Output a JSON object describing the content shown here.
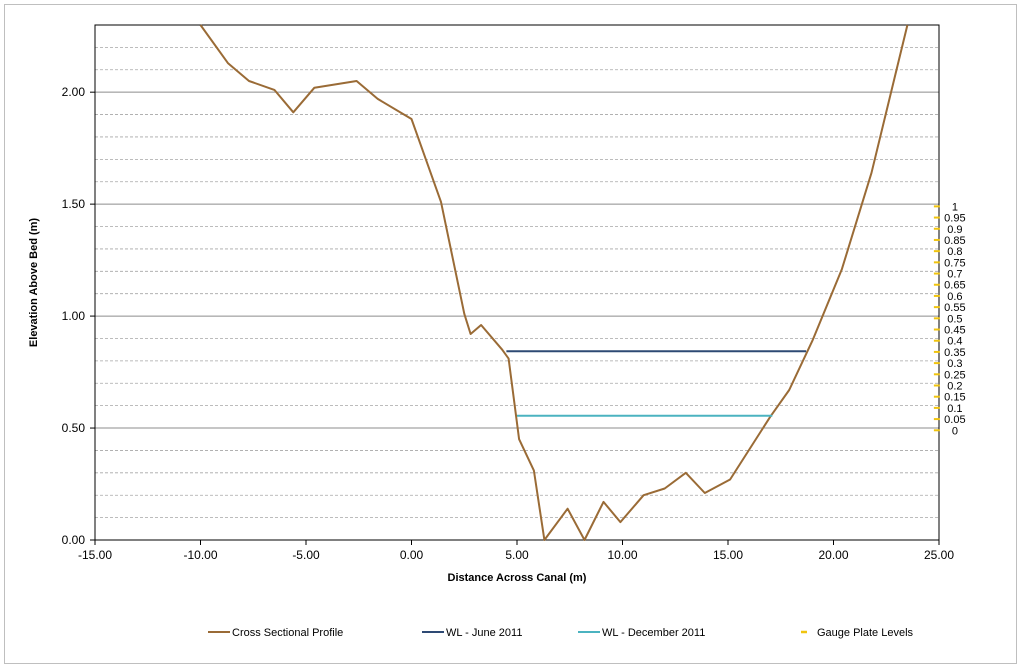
{
  "chart_data": {
    "type": "line",
    "title": "",
    "xlabel": "Distance Across Canal (m)",
    "ylabel": "Elevation Above Bed (m)",
    "xlim": [
      -15,
      25
    ],
    "ylim": [
      0,
      2.3
    ],
    "x_ticks": [
      -15,
      -10,
      -5,
      0,
      5,
      10,
      15,
      20,
      25
    ],
    "y_major_ticks": [
      0,
      0.5,
      1.0,
      1.5,
      2.0
    ],
    "y_minor_step": 0.1,
    "x_tick_labels": [
      "-15.00",
      "-10.00",
      "-5.00",
      "0.00",
      "5.00",
      "10.00",
      "15.00",
      "20.00",
      "25.00"
    ],
    "y_tick_labels": [
      "0.00",
      "0.50",
      "1.00",
      "1.50",
      "2.00"
    ],
    "grid": true,
    "legend_position": "bottom",
    "series": [
      {
        "name": "Cross Sectional Profile",
        "color": "#9a6b36",
        "points": [
          [
            -10.0,
            2.3
          ],
          [
            -8.7,
            2.13
          ],
          [
            -7.7,
            2.05
          ],
          [
            -6.5,
            2.01
          ],
          [
            -5.6,
            1.91
          ],
          [
            -4.6,
            2.02
          ],
          [
            -2.6,
            2.05
          ],
          [
            -1.6,
            1.97
          ],
          [
            0.0,
            1.88
          ],
          [
            1.4,
            1.51
          ],
          [
            2.5,
            1.01
          ],
          [
            2.8,
            0.92
          ],
          [
            3.3,
            0.96
          ],
          [
            4.3,
            0.85
          ],
          [
            4.6,
            0.81
          ],
          [
            5.1,
            0.45
          ],
          [
            5.8,
            0.31
          ],
          [
            6.3,
            0.0
          ],
          [
            7.4,
            0.14
          ],
          [
            8.2,
            0.0
          ],
          [
            9.1,
            0.17
          ],
          [
            9.9,
            0.08
          ],
          [
            11.0,
            0.2
          ],
          [
            12.0,
            0.23
          ],
          [
            13.0,
            0.3
          ],
          [
            13.9,
            0.21
          ],
          [
            15.1,
            0.27
          ],
          [
            17.0,
            0.55
          ],
          [
            17.9,
            0.67
          ],
          [
            19.0,
            0.89
          ],
          [
            20.4,
            1.21
          ],
          [
            21.8,
            1.64
          ],
          [
            23.5,
            2.3
          ]
        ]
      },
      {
        "name": "WL - June 2011",
        "color": "#2e4a74",
        "points": [
          [
            4.5,
            0.843
          ],
          [
            18.7,
            0.843
          ]
        ]
      },
      {
        "name": "WL - December 2011",
        "color": "#4bb3c0",
        "points": [
          [
            5.0,
            0.555
          ],
          [
            17.1,
            0.555
          ]
        ]
      }
    ],
    "gauge_plate": {
      "name": "Gauge Plate Levels",
      "color": "#f0c40f",
      "x": 24.9,
      "base_elevation": 0.49,
      "step_elevation": 0.05,
      "labels": [
        "0",
        "0.05",
        "0.1",
        "0.15",
        "0.2",
        "0.25",
        "0.3",
        "0.35",
        "0.4",
        "0.45",
        "0.5",
        "0.55",
        "0.6",
        "0.65",
        "0.7",
        "0.75",
        "0.8",
        "0.85",
        "0.9",
        "0.95",
        "1"
      ]
    }
  }
}
